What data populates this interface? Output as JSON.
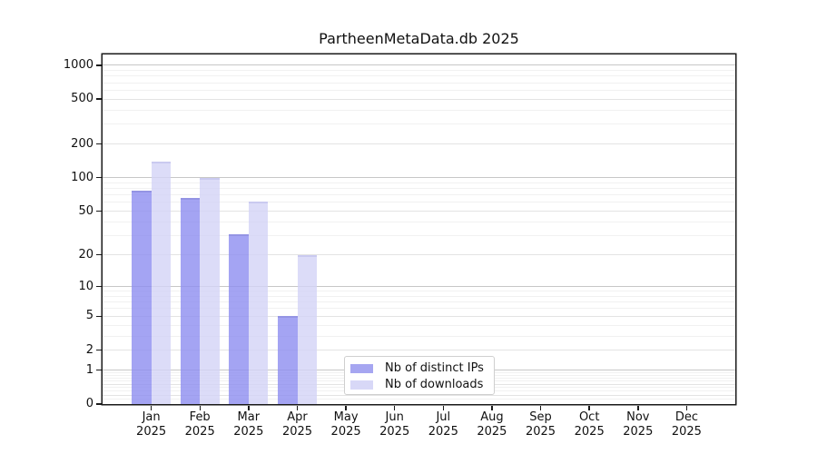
{
  "figure": {
    "title": "PartheenMetaData.db 2025"
  },
  "chart_data": {
    "type": "bar",
    "title": "PartheenMetaData.db 2025",
    "categories": [
      "Jan",
      "Feb",
      "Mar",
      "Apr",
      "May",
      "Jun",
      "Jul",
      "Aug",
      "Sep",
      "Oct",
      "Nov",
      "Dec"
    ],
    "x_tick_year": "2025",
    "series": [
      {
        "name": "Nb of distinct IPs",
        "color": "#a6a6f1",
        "values": [
          77,
          66,
          31,
          5,
          0,
          0,
          0,
          0,
          0,
          0,
          0,
          0
        ]
      },
      {
        "name": "Nb of downloads",
        "color": "#d8d8f7",
        "values": [
          138,
          100,
          61,
          20,
          0,
          0,
          0,
          0,
          0,
          0,
          0,
          0
        ]
      }
    ],
    "xlabel": "",
    "ylabel": "",
    "y_ticks": [
      0,
      1,
      2,
      5,
      10,
      20,
      50,
      100,
      200,
      500,
      1000
    ],
    "y_scale": "log10(value+1)",
    "ylim": [
      0,
      1244
    ],
    "grid": true,
    "legend": {
      "position": "lower-center",
      "entries": [
        "Nb of distinct IPs",
        "Nb of downloads"
      ]
    }
  }
}
